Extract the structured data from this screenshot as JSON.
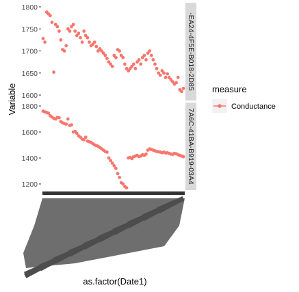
{
  "chart_data": {
    "type": "scatter",
    "xlabel": "as.factor(Date1)",
    "ylabel": "Variable",
    "legend": {
      "title": "measure",
      "entries": [
        "Conductance"
      ],
      "position": "right"
    },
    "point_color": "#F8766D",
    "panels": [
      {
        "strip_label": "-EA24-4F5E-B018-2D85",
        "ylim": [
          1600,
          1800
        ],
        "y_ticks": [
          "1800",
          "1750",
          "1700",
          "1650",
          "1600"
        ],
        "x": [
          1,
          2,
          3,
          4,
          5,
          6,
          7,
          8,
          9,
          10,
          11,
          12,
          13,
          14,
          15,
          16,
          17,
          18,
          19,
          20,
          21,
          22,
          23,
          24,
          25,
          26,
          27,
          28,
          29,
          30,
          31,
          32,
          33,
          34,
          35,
          36,
          37,
          38,
          39,
          40,
          41,
          42,
          43,
          44,
          45,
          46,
          47,
          48,
          49,
          50,
          51,
          52,
          53,
          54,
          55,
          56,
          57,
          58,
          59,
          60,
          61,
          62,
          63,
          64,
          65,
          66,
          67,
          68,
          69,
          70,
          71,
          72,
          73,
          74,
          75,
          76,
          77,
          78,
          79,
          80
        ],
        "values": [
          1728,
          1720,
          1788,
          1784,
          1780,
          1765,
          1652,
          1760,
          1755,
          1745,
          1725,
          1703,
          1700,
          1712,
          1750,
          1745,
          1755,
          1760,
          1745,
          1735,
          1740,
          1730,
          1720,
          1745,
          1735,
          1730,
          1720,
          1712,
          1715,
          1720,
          1710,
          1700,
          1705,
          1700,
          1695,
          1690,
          1683,
          1675,
          1670,
          1665,
          1690,
          1685,
          1703,
          1700,
          1690,
          1685,
          1670,
          1660,
          1655,
          1660,
          1665,
          1670,
          1660,
          1675,
          1680,
          1670,
          1685,
          1690,
          1680,
          1695,
          1700,
          1690,
          1680,
          1670,
          1660,
          1650,
          1645,
          1655,
          1650,
          1640,
          1648,
          1640,
          1635,
          1630,
          1625,
          1628,
          1640,
          1612,
          1608,
          1615
        ]
      },
      {
        "strip_label": "7A6C-41BA-B919-03A4",
        "ylim": [
          1150,
          1800
        ],
        "y_ticks": [
          "1800",
          "1600",
          "1400",
          "1200"
        ],
        "x": [
          1,
          2,
          3,
          4,
          5,
          6,
          7,
          8,
          9,
          10,
          11,
          12,
          13,
          14,
          15,
          16,
          17,
          18,
          19,
          20,
          21,
          22,
          23,
          24,
          25,
          26,
          27,
          28,
          29,
          30,
          31,
          32,
          33,
          34,
          35,
          36,
          37,
          38,
          39,
          40,
          41,
          42,
          43,
          44,
          45,
          46,
          47,
          48,
          49,
          50,
          51,
          52,
          53,
          54,
          55,
          56,
          57,
          58,
          59,
          60,
          61,
          62,
          63,
          64,
          65,
          66,
          67,
          68,
          69,
          70,
          71,
          72,
          73,
          74,
          75,
          76,
          77,
          78,
          79,
          80
        ],
        "values": [
          1760,
          1755,
          1750,
          1745,
          1725,
          1715,
          1705,
          1700,
          1712,
          1710,
          1680,
          1670,
          1665,
          1660,
          1700,
          1650,
          1655,
          1600,
          1605,
          1590,
          1570,
          1560,
          1545,
          1540,
          1560,
          1530,
          1525,
          1520,
          1510,
          1500,
          1495,
          1490,
          1480,
          1470,
          1460,
          1450,
          1445,
          1400,
          1380,
          1360,
          1340,
          1320,
          1280,
          1250,
          1210,
          1200,
          1180,
          1170,
          1400,
          1405,
          1395,
          1410,
          1415,
          1420,
          1410,
          1415,
          1425,
          1420,
          1430,
          1460,
          1470,
          1465,
          1460,
          1455,
          1450,
          1448,
          1445,
          1440,
          1445,
          1438,
          1440,
          1435,
          1430,
          1428,
          1435,
          1432,
          1425,
          1420,
          1415,
          1410
        ]
      }
    ],
    "x_tick_labels": "illegible (overlapping date labels rendered as a dark block)"
  }
}
